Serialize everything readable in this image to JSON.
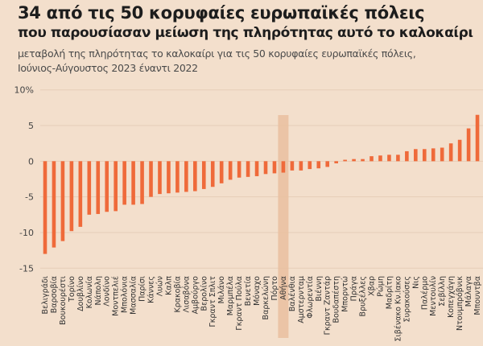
{
  "header": {
    "title": "34 από τις 50 κορυφαίες ευρωπαϊκές πόλεις",
    "subtitle": "που παρουσίασαν μείωση της πληρότητας αυτό το καλοκαίρι",
    "description_line1": "μεταβολή της πληρότητας το καλοκαίρι για τις 50 κορυφαίες ευρωπαϊκές πόλεις,",
    "description_line2": "Ιούνιος-Αύγουστος 2023 έναντι 2022"
  },
  "colors": {
    "background": "#f3dfcc",
    "bar": "#ef6a3a",
    "highlight_band": "#e9bf9f",
    "gridline": "#e6cdb8"
  },
  "chart_data": {
    "type": "bar",
    "title": "34 από τις 50 κορυφαίες ευρωπαϊκές πόλεις που παρουσίασαν μείωση της πληρότητας αυτό το καλοκαίρι",
    "xlabel": "",
    "ylabel": "",
    "ylim": [
      -15,
      10
    ],
    "yticks": [
      10,
      5,
      0,
      -5,
      -10,
      -15
    ],
    "ytick_labels": [
      "10%",
      "5",
      "0",
      "-5",
      "-10",
      "-15"
    ],
    "grid": true,
    "highlight": "Αθήνα",
    "categories": [
      "Βελιγράδι",
      "Βαρσοβία",
      "Βουκουρέστι",
      "Τορίνο",
      "Δουβλίνο",
      "Κολωνία",
      "Νάπολη",
      "Λονδίνο",
      "Μοντπελιέ",
      "Μπολόνια",
      "Μασσαλία",
      "Παρίσι",
      "Κάννες",
      "Λυών",
      "Καλπ",
      "Κρακοβία",
      "Λισαβόνα",
      "Αμβούργο",
      "Βερολίνο",
      "Γκραντ Σπλιτ",
      "Μιλάνο",
      "Μαρμπέλα",
      "Γκραντ Πούλα",
      "Βενετία",
      "Μόναχο",
      "Βαρκελώνη",
      "Πόρτο",
      "Αθήνα",
      "Βαλένθια",
      "Αμστερνταμ",
      "Φλωρεντία",
      "Βιέννη",
      "Γκραντ Ζαντάρ",
      "Βουδαπέστη",
      "Μπορντώ",
      "Πράγα",
      "Βρυξέλλες",
      "Χβαρ",
      "Ρώμη",
      "Μαδρίτη",
      "Σιβένακο Κν.Ιακο",
      "Συρακούσες",
      "Νις",
      "Παλέρμο",
      "Μεντουλίν",
      "Σεβίλλη",
      "Κοπεγχάγη",
      "Ντουμπρόβνικ",
      "Μάλαγα",
      "Μπουντβα"
    ],
    "values": [
      -13.0,
      -12.1,
      -11.2,
      -9.8,
      -9.2,
      -7.5,
      -7.4,
      -7.1,
      -7.0,
      -6.1,
      -6.1,
      -6.0,
      -5.0,
      -4.6,
      -4.5,
      -4.4,
      -4.3,
      -4.2,
      -3.9,
      -3.6,
      -3.1,
      -2.6,
      -2.3,
      -2.2,
      -2.1,
      -1.8,
      -1.7,
      -1.6,
      -1.3,
      -1.3,
      -1.1,
      -1.0,
      -0.8,
      -0.3,
      0.2,
      0.3,
      0.3,
      0.7,
      0.8,
      0.9,
      0.9,
      1.4,
      1.7,
      1.7,
      1.8,
      1.9,
      2.5,
      3.0,
      4.6,
      6.5
    ]
  }
}
